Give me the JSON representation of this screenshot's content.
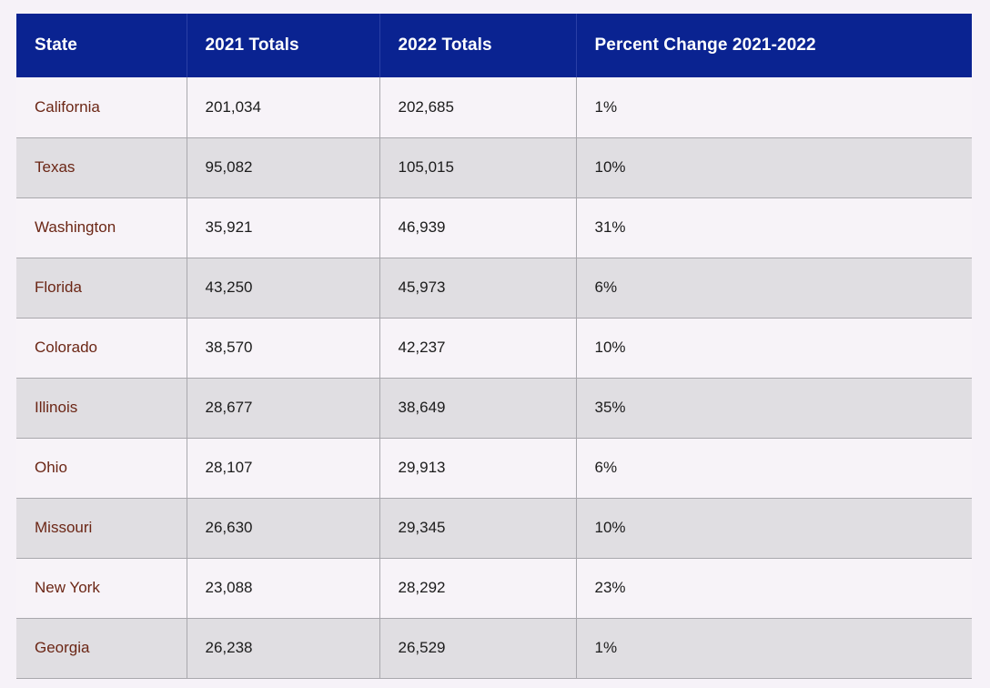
{
  "table": {
    "headers": [
      "State",
      "2021 Totals",
      "2022 Totals",
      "Percent Change 2021-2022"
    ],
    "rows": [
      {
        "state": "California",
        "t2021": "201,034",
        "t2022": "202,685",
        "pct": "1%"
      },
      {
        "state": "Texas",
        "t2021": "95,082",
        "t2022": "105,015",
        "pct": "10%"
      },
      {
        "state": "Washington",
        "t2021": "35,921",
        "t2022": "46,939",
        "pct": "31%"
      },
      {
        "state": "Florida",
        "t2021": "43,250",
        "t2022": "45,973",
        "pct": "6%"
      },
      {
        "state": "Colorado",
        "t2021": "38,570",
        "t2022": "42,237",
        "pct": "10%"
      },
      {
        "state": "Illinois",
        "t2021": "28,677",
        "t2022": "38,649",
        "pct": "35%"
      },
      {
        "state": "Ohio",
        "t2021": "28,107",
        "t2022": "29,913",
        "pct": "6%"
      },
      {
        "state": "Missouri",
        "t2021": "26,630",
        "t2022": "29,345",
        "pct": "10%"
      },
      {
        "state": "New York",
        "t2021": "23,088",
        "t2022": "28,292",
        "pct": "23%"
      },
      {
        "state": "Georgia",
        "t2021": "26,238",
        "t2022": "26,529",
        "pct": "1%"
      }
    ]
  },
  "colors": {
    "header_bg": "#0a2391",
    "header_text": "#ffffff",
    "row_odd": "#f7f3f8",
    "row_even": "#e0dee2",
    "state_text": "#6b2615"
  }
}
